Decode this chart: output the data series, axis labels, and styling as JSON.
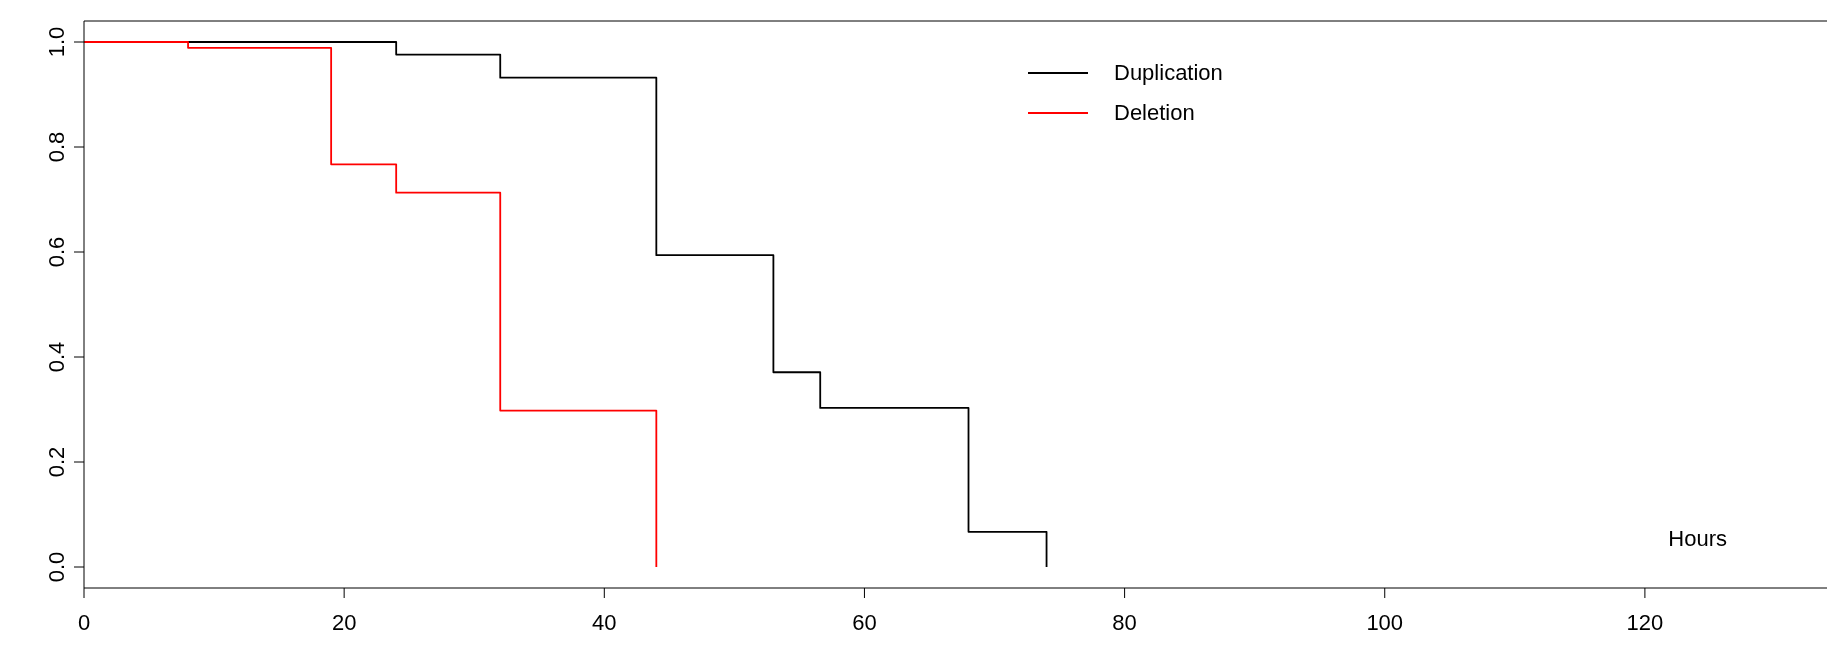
{
  "chart_data": {
    "type": "step",
    "xlabel": "Hours",
    "xlim": [
      0,
      134
    ],
    "xticks": [
      0,
      20,
      40,
      60,
      80,
      100,
      120
    ],
    "ylim": [
      -0.04,
      1.04
    ],
    "yticks": [
      {
        "value": 0,
        "label": "0.0"
      },
      {
        "value": 0.2,
        "label": "0.2"
      },
      {
        "value": 0.4,
        "label": "0.4"
      },
      {
        "value": 0.6,
        "label": "0.6"
      },
      {
        "value": 0.8,
        "label": "0.8"
      },
      {
        "value": 1,
        "label": "1.0"
      }
    ],
    "grid": false,
    "legend": "top",
    "marker": "none",
    "line_style": "solid",
    "series": [
      {
        "name": "Duplication",
        "color": "#000000",
        "x": [
          0,
          24,
          32,
          44,
          53,
          56.6,
          68,
          74
        ],
        "values": [
          1,
          0.976,
          0.932,
          0.594,
          0.371,
          0.303,
          0.067,
          0
        ]
      },
      {
        "name": "Deletion",
        "color": "#ff0000",
        "x": [
          0,
          8,
          19,
          24,
          32,
          44
        ],
        "values": [
          1,
          0.989,
          0.767,
          0.713,
          0.298,
          0
        ]
      }
    ]
  }
}
